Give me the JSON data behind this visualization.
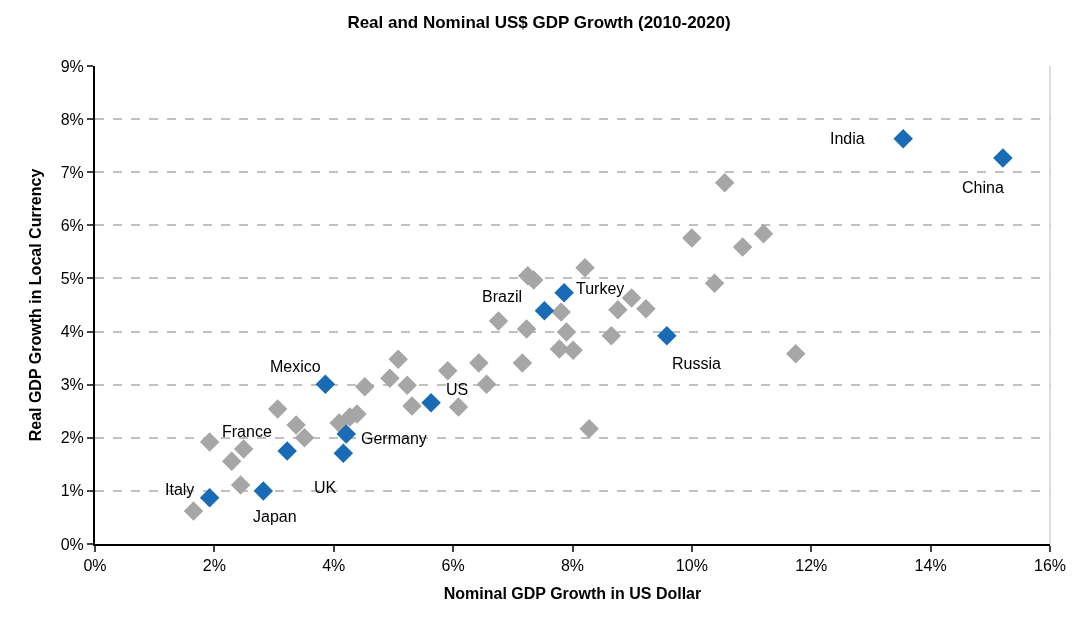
{
  "chart_data": {
    "type": "scatter",
    "title": "Real and Nominal US$ GDP Growth (2010-2020)",
    "xlabel": "Nominal GDP Growth in US Dollar",
    "ylabel": "Real GDP Growth in Local Currency",
    "marker": "diamond",
    "grid": "y",
    "xlim": [
      0,
      16
    ],
    "ylim": [
      0,
      9
    ],
    "xticks": [
      {
        "value": 0,
        "label": "0%"
      },
      {
        "value": 2,
        "label": "2%"
      },
      {
        "value": 4,
        "label": "4%"
      },
      {
        "value": 6,
        "label": "6%"
      },
      {
        "value": 8,
        "label": "8%"
      },
      {
        "value": 10,
        "label": "10%"
      },
      {
        "value": 12,
        "label": "12%"
      },
      {
        "value": 14,
        "label": "14%"
      },
      {
        "value": 16,
        "label": "16%"
      }
    ],
    "yticks": [
      {
        "value": 0,
        "label": "0%"
      },
      {
        "value": 1,
        "label": "1%"
      },
      {
        "value": 2,
        "label": "2%"
      },
      {
        "value": 3,
        "label": "3%"
      },
      {
        "value": 4,
        "label": "4%"
      },
      {
        "value": 5,
        "label": "5%"
      },
      {
        "value": 6,
        "label": "6%"
      },
      {
        "value": 7,
        "label": "7%"
      },
      {
        "value": 8,
        "label": "8%"
      },
      {
        "value": 9,
        "label": "9%"
      }
    ],
    "series": [
      {
        "color": "#a6a6a6",
        "x": [
          1.65,
          1.92,
          2.29,
          2.49,
          2.44,
          3.06,
          3.37,
          3.51,
          4.09,
          4.27,
          4.39,
          4.52,
          4.94,
          5.08,
          5.23,
          5.31,
          5.91,
          6.09,
          6.43,
          6.56,
          7.16,
          6.76,
          7.23,
          7.25,
          7.35,
          8.21,
          7.81,
          7.9,
          7.78,
          8.01,
          8.76,
          8.99,
          9.23,
          8.65,
          8.28,
          10.38,
          11.74,
          10.55,
          10.0,
          10.85,
          11.2
        ],
        "values": [
          0.62,
          1.92,
          1.56,
          1.79,
          1.11,
          2.54,
          2.24,
          2.0,
          2.28,
          2.39,
          2.45,
          2.96,
          3.12,
          3.48,
          2.99,
          2.6,
          3.26,
          2.58,
          3.41,
          3.01,
          3.41,
          4.2,
          4.05,
          5.05,
          4.97,
          5.2,
          4.37,
          3.99,
          3.67,
          3.65,
          4.41,
          4.63,
          4.43,
          3.92,
          2.17,
          4.91,
          3.58,
          6.8,
          5.76,
          5.59,
          5.84
        ]
      },
      {
        "color": "#1a6bb5",
        "x": [
          1.92,
          2.82,
          3.22,
          4.16,
          4.21,
          3.86,
          5.63,
          7.53,
          7.86,
          9.58,
          13.54,
          15.21
        ],
        "values": [
          0.87,
          1.0,
          1.75,
          1.71,
          2.07,
          3.01,
          2.66,
          4.39,
          4.73,
          3.92,
          7.63,
          7.27
        ]
      }
    ],
    "annotations": [
      {
        "text": "Italy",
        "x": 1.92,
        "y": 0.87
      },
      {
        "text": "Japan",
        "x": 2.82,
        "y": 1.0
      },
      {
        "text": "France",
        "x": 3.22,
        "y": 1.75
      },
      {
        "text": "UK",
        "x": 4.16,
        "y": 1.71
      },
      {
        "text": "Germany",
        "x": 4.21,
        "y": 2.07
      },
      {
        "text": "Mexico",
        "x": 3.86,
        "y": 3.01
      },
      {
        "text": "US",
        "x": 5.63,
        "y": 2.66
      },
      {
        "text": "Brazil",
        "x": 7.53,
        "y": 4.39
      },
      {
        "text": "Turkey",
        "x": 7.86,
        "y": 4.73
      },
      {
        "text": "Russia",
        "x": 9.58,
        "y": 3.92
      },
      {
        "text": "India",
        "x": 13.54,
        "y": 7.63
      },
      {
        "text": "China",
        "x": 15.21,
        "y": 7.27
      }
    ]
  }
}
